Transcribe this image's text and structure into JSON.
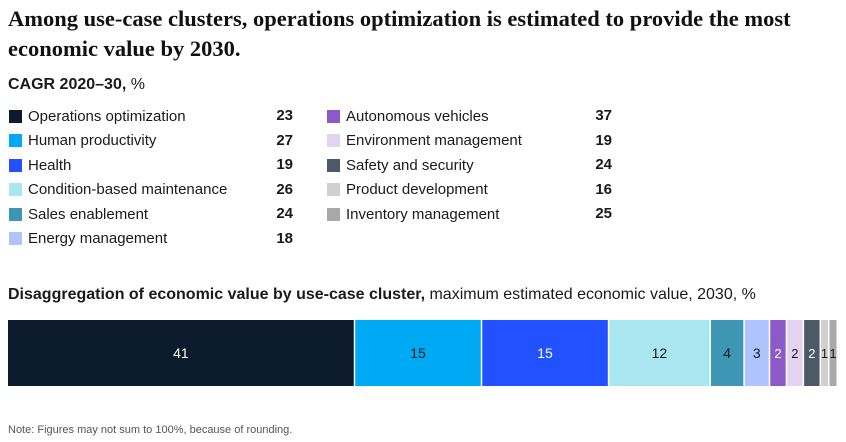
{
  "title": "Among use-case clusters, operations optimization is estimated to provide the most economic value by 2030.",
  "cagr": {
    "label_bold": "CAGR 2020–30,",
    "label_unit": " %"
  },
  "disaggregation": {
    "label_bold": "Disaggregation of economic value by use-case cluster,",
    "label_rest": " maximum estimated economic value, 2030, %"
  },
  "note": "Note: Figures may not sum to 100%, because of rounding.",
  "chart_data": [
    {
      "type": "table",
      "title": "CAGR 2020–30, %",
      "rows": [
        {
          "name": "Operations optimization",
          "value": 23,
          "color": "#0c1c2e"
        },
        {
          "name": "Human productivity",
          "value": 27,
          "color": "#00a9f4"
        },
        {
          "name": "Health",
          "value": 19,
          "color": "#2251ff"
        },
        {
          "name": "Condition-based maintenance",
          "value": 26,
          "color": "#aae6f0"
        },
        {
          "name": "Sales enablement",
          "value": 24,
          "color": "#3c96b4"
        },
        {
          "name": "Energy management",
          "value": 18,
          "color": "#afc3ff"
        },
        {
          "name": "Autonomous vehicles",
          "value": 37,
          "color": "#8c5ac8"
        },
        {
          "name": "Environment management",
          "value": 19,
          "color": "#e3d3f0"
        },
        {
          "name": "Safety and security",
          "value": 24,
          "color": "#4b5a64"
        },
        {
          "name": "Product development",
          "value": 16,
          "color": "#d0d0d0"
        },
        {
          "name": "Inventory management",
          "value": 25,
          "color": "#a8a8a8"
        }
      ]
    },
    {
      "type": "bar",
      "orientation": "horizontal-stacked",
      "title": "Disaggregation of economic value by use-case cluster, maximum estimated economic value, 2030, %",
      "categories": [
        "Operations optimization",
        "Human productivity",
        "Health",
        "Condition-based maintenance",
        "Sales enablement",
        "Energy management",
        "Autonomous vehicles",
        "Environment management",
        "Safety and security",
        "Product development",
        "Inventory management"
      ],
      "values": [
        41,
        15,
        15,
        12,
        4,
        3,
        2,
        2,
        2,
        1,
        1
      ],
      "colors": [
        "#0c1c2e",
        "#00a9f4",
        "#2251ff",
        "#aae6f0",
        "#3c96b4",
        "#afc3ff",
        "#8c5ac8",
        "#e3d3f0",
        "#4b5a64",
        "#d0d0d0",
        "#a8a8a8"
      ],
      "label_colors": [
        "#ffffff",
        "#1a1a1a",
        "#ffffff",
        "#1a1a1a",
        "#1a1a1a",
        "#1a1a1a",
        "#ffffff",
        "#1a1a1a",
        "#ffffff",
        "#1a1a1a",
        "#1a1a1a"
      ]
    }
  ]
}
